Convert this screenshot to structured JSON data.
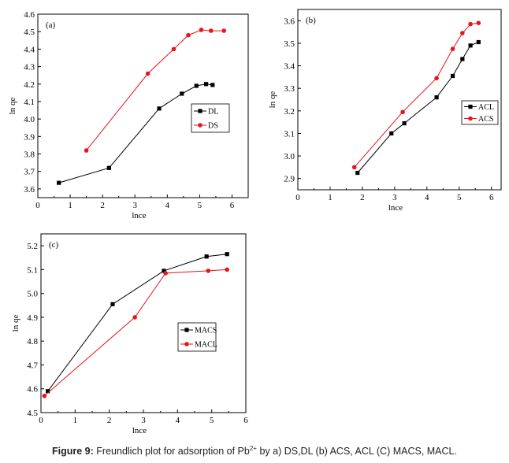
{
  "chart_data": [
    {
      "type": "line",
      "panel_label": "(a)",
      "xlabel": "lnce",
      "ylabel": "ln qe",
      "xlim": [
        0,
        6.5
      ],
      "ylim": [
        3.55,
        4.6
      ],
      "xticks": [
        0,
        1,
        2,
        3,
        4,
        5,
        6
      ],
      "yticks": [
        3.6,
        3.7,
        3.8,
        3.9,
        4.0,
        4.1,
        4.2,
        4.3,
        4.4,
        4.5,
        4.6
      ],
      "xtick_labels": [
        "0",
        "1",
        "2",
        "3",
        "4",
        "5",
        "6"
      ],
      "ytick_labels": [
        "3.6",
        "3.7",
        "3.8",
        "3.9",
        "4.0",
        "4.1",
        "4.2",
        "4.3",
        "4.4",
        "4.5",
        "4.6"
      ],
      "legend_position": "center-right",
      "series": [
        {
          "name": "DL",
          "color": "#000000",
          "marker": "square",
          "x": [
            0.65,
            2.2,
            3.75,
            4.45,
            4.9,
            5.2,
            5.4
          ],
          "y": [
            3.635,
            3.72,
            4.06,
            4.145,
            4.19,
            4.2,
            4.195
          ]
        },
        {
          "name": "DS",
          "color": "#e8141b",
          "marker": "circle",
          "x": [
            1.5,
            3.4,
            4.2,
            4.65,
            5.05,
            5.35,
            5.75
          ],
          "y": [
            3.82,
            4.26,
            4.4,
            4.48,
            4.51,
            4.505,
            4.505
          ]
        }
      ]
    },
    {
      "type": "line",
      "panel_label": "(b)",
      "xlabel": "lnce",
      "ylabel": "ln qe",
      "xlim": [
        0,
        6.3
      ],
      "ylim": [
        2.85,
        3.65
      ],
      "xticks": [
        0,
        1,
        2,
        3,
        4,
        5,
        6
      ],
      "yticks": [
        2.9,
        3.0,
        3.1,
        3.2,
        3.3,
        3.4,
        3.5,
        3.6
      ],
      "xtick_labels": [
        "0",
        "1",
        "2",
        "3",
        "4",
        "5",
        "6"
      ],
      "ytick_labels": [
        "2.9",
        "3.0",
        "3.1",
        "3.2",
        "3.3",
        "3.4",
        "3.5",
        "3.6"
      ],
      "legend_position": "center-right",
      "series": [
        {
          "name": "ACL",
          "color": "#000000",
          "marker": "square",
          "x": [
            1.85,
            2.9,
            3.3,
            4.3,
            4.8,
            5.1,
            5.35,
            5.6
          ],
          "y": [
            2.925,
            3.1,
            3.145,
            3.26,
            3.355,
            3.43,
            3.49,
            3.505
          ]
        },
        {
          "name": "ACS",
          "color": "#e8141b",
          "marker": "circle",
          "x": [
            1.75,
            3.25,
            4.3,
            4.8,
            5.1,
            5.35,
            5.6
          ],
          "y": [
            2.95,
            3.195,
            3.345,
            3.475,
            3.545,
            3.585,
            3.59
          ]
        }
      ]
    },
    {
      "type": "line",
      "panel_label": "(c)",
      "xlabel": "lnce",
      "ylabel": "ln qe",
      "xlim": [
        0,
        6
      ],
      "ylim": [
        4.5,
        5.25
      ],
      "xticks": [
        0,
        1,
        2,
        3,
        4,
        5,
        6
      ],
      "yticks": [
        4.5,
        4.6,
        4.7,
        4.8,
        4.9,
        5.0,
        5.1,
        5.2
      ],
      "xtick_labels": [
        "0",
        "1",
        "2",
        "3",
        "4",
        "5",
        "6"
      ],
      "ytick_labels": [
        "4.5",
        "4.6",
        "4.7",
        "4.8",
        "4.9",
        "5.0",
        "5.1",
        "5.2"
      ],
      "legend_position": "center-right",
      "series": [
        {
          "name": "MACS",
          "color": "#000000",
          "marker": "square",
          "x": [
            0.2,
            2.1,
            3.6,
            4.85,
            5.45
          ],
          "y": [
            4.59,
            4.955,
            5.095,
            5.155,
            5.165
          ]
        },
        {
          "name": "MACL",
          "color": "#e8141b",
          "marker": "circle",
          "x": [
            0.1,
            2.75,
            3.65,
            4.9,
            5.45
          ],
          "y": [
            4.57,
            4.9,
            5.085,
            5.095,
            5.1
          ]
        }
      ]
    }
  ],
  "caption": {
    "prefix": "Figure 9:",
    "text_before_sup": " Freundlich plot for adsorption of Pb",
    "sup": "2+",
    "text_after_sup": " by a) DS,DL (b) ACS, ACL (C) MACS, MACL."
  }
}
